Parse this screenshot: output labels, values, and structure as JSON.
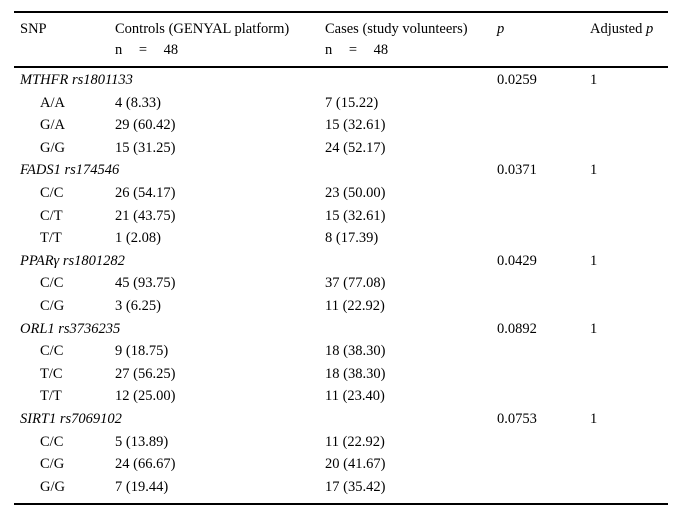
{
  "table": {
    "headers": {
      "snp": "SNP",
      "controls_title": "Controls (GENYAL platform)",
      "controls_n": "n = 48",
      "cases_title": "Cases (study volunteers)",
      "cases_n": "n = 48",
      "p": "p",
      "adjusted": "Adjusted",
      "adjusted_p_italic": "p"
    },
    "groups": [
      {
        "snp": "MTHFR rs1801133",
        "p": "0.0259",
        "adjusted_p": "1",
        "genotypes": [
          {
            "genotype": "A/A",
            "controls": "4 (8.33)",
            "cases": "7 (15.22)"
          },
          {
            "genotype": "G/A",
            "controls": "29 (60.42)",
            "cases": "15 (32.61)"
          },
          {
            "genotype": "G/G",
            "controls": "15 (31.25)",
            "cases": "24 (52.17)"
          }
        ]
      },
      {
        "snp": "FADS1 rs174546",
        "p": "0.0371",
        "adjusted_p": "1",
        "genotypes": [
          {
            "genotype": "C/C",
            "controls": "26 (54.17)",
            "cases": "23 (50.00)"
          },
          {
            "genotype": "C/T",
            "controls": "21 (43.75)",
            "cases": "15 (32.61)"
          },
          {
            "genotype": "T/T",
            "controls": "1 (2.08)",
            "cases": "8 (17.39)"
          }
        ]
      },
      {
        "snp": "PPARγ rs1801282",
        "p": "0.0429",
        "adjusted_p": "1",
        "genotypes": [
          {
            "genotype": "C/C",
            "controls": "45 (93.75)",
            "cases": "37 (77.08)"
          },
          {
            "genotype": "C/G",
            "controls": "3 (6.25)",
            "cases": "11 (22.92)"
          }
        ]
      },
      {
        "snp": "ORL1 rs3736235",
        "p": "0.0892",
        "adjusted_p": "1",
        "genotypes": [
          {
            "genotype": "C/C",
            "controls": "9 (18.75)",
            "cases": "18 (38.30)"
          },
          {
            "genotype": "T/C",
            "controls": "27 (56.25)",
            "cases": "18 (38.30)"
          },
          {
            "genotype": "T/T",
            "controls": "12 (25.00)",
            "cases": "11 (23.40)"
          }
        ]
      },
      {
        "snp": "SIRT1 rs7069102",
        "p": "0.0753",
        "adjusted_p": "1",
        "genotypes": [
          {
            "genotype": "C/C",
            "controls": "5 (13.89)",
            "cases": "11 (22.92)"
          },
          {
            "genotype": "C/G",
            "controls": "24 (66.67)",
            "cases": "20 (41.67)"
          },
          {
            "genotype": "G/G",
            "controls": "7 (19.44)",
            "cases": "17 (35.42)"
          }
        ]
      }
    ]
  },
  "colors": {
    "text": "#000000",
    "rule": "#000000",
    "background": "#ffffff"
  }
}
